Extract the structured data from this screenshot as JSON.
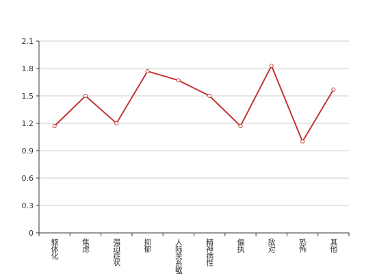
{
  "chart_data": {
    "type": "line",
    "categories": [
      "躯体化",
      "焦虑",
      "强迫症状",
      "抑郁",
      "人际关系敏感",
      "精神病性",
      "偏执",
      "敌对",
      "恐怖",
      "其他"
    ],
    "values": [
      1.17,
      1.5,
      1.2,
      1.77,
      1.67,
      1.5,
      1.17,
      1.83,
      1.0,
      1.57
    ],
    "color": "#c23531",
    "ylim": [
      0,
      2.1
    ],
    "yticks": [
      0,
      0.3,
      0.6,
      0.9,
      1.2,
      1.5,
      1.8,
      2.1
    ],
    "grid": true
  }
}
